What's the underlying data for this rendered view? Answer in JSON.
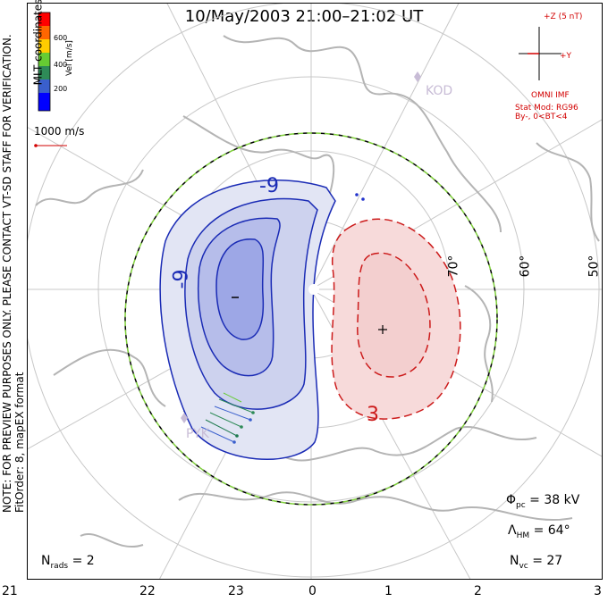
{
  "title": "10/May/2003 21:00–21:02 UT",
  "side_text": {
    "line1": "NOTE: FOR PREVIEW PURPOSES ONLY. PLEASE CONTACT VT-SD STAFF FOR VERIFICATION.",
    "line2": "FitOrder: 8, mapEX format"
  },
  "coords_label": "MLT coordinates",
  "legend": {
    "unit": "Vel [m/s]",
    "ticks": [
      "600",
      "400",
      "200"
    ],
    "colors": [
      "#0000ff",
      "#3a5fcd",
      "#2e8b57",
      "#66cc33",
      "#ffcc00",
      "#ff6600",
      "#ff0000"
    ]
  },
  "scale_vector": "1000 m/s",
  "imf": {
    "z_label": "+Z (5 nT)",
    "y_label": "+Y",
    "source": "OMNI IMF",
    "model": "Stat Mod: RG96",
    "condition": "By-, 0<BT<4"
  },
  "latitude_labels": [
    "70°",
    "60°",
    "50°"
  ],
  "contour_labels": {
    "neg": "-9",
    "neg2": "-9",
    "pos": "3"
  },
  "markers": {
    "min": "−",
    "max": "+"
  },
  "station_labels": {
    "kod": "KOD",
    "pyk": "PYK"
  },
  "stats": {
    "phi": "Φ",
    "phi_sub": "pc",
    "phi_val": "= 38 kV",
    "lambda": "Λ",
    "lambda_sub": "HM",
    "lambda_val": "= 64°",
    "nvc": "N",
    "nvc_sub": "vc",
    "nvc_val": "= 27",
    "nrads": "N",
    "nrads_sub": "rads",
    "nrads_val": "= 2"
  },
  "mlt_ticks": [
    "21",
    "22",
    "23",
    "0",
    "1",
    "2",
    "3"
  ]
}
